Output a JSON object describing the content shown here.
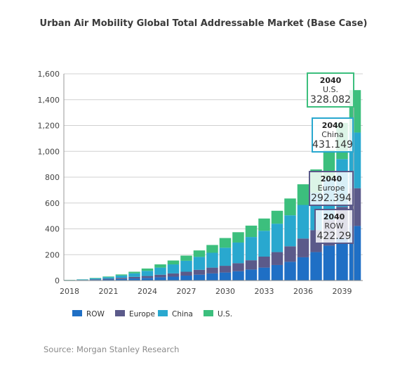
{
  "chart_data": {
    "type": "bar",
    "stacked": true,
    "title": "Urban Air Mobility Global Total Addressable Market (Base Case)",
    "xlabel": "",
    "ylabel": "",
    "ylim": [
      0,
      1600
    ],
    "yticks": [
      "0",
      "200",
      "400",
      "600",
      "800",
      "1,000",
      "1,200",
      "1,400",
      "1,600"
    ],
    "ytick_values": [
      0,
      200,
      400,
      600,
      800,
      1000,
      1200,
      1400,
      1600
    ],
    "xtick_labels": [
      "2018",
      "2021",
      "2024",
      "2027",
      "2030",
      "2033",
      "2036",
      "2039"
    ],
    "categories": [
      "2018",
      "2019",
      "2020",
      "2021",
      "2022",
      "2023",
      "2024",
      "2025",
      "2026",
      "2027",
      "2028",
      "2029",
      "2030",
      "2031",
      "2032",
      "2033",
      "2034",
      "2035",
      "2036",
      "2037",
      "2038",
      "2039",
      "2040"
    ],
    "grid": "horizontal",
    "legend_position": "bottom",
    "series": [
      {
        "name": "ROW",
        "color": "#1f6fc5",
        "values": [
          1,
          2,
          5,
          8,
          12,
          16,
          20,
          25,
          30,
          38,
          45,
          55,
          62,
          72,
          85,
          100,
          120,
          145,
          180,
          220,
          270,
          330,
          422.29
        ]
      },
      {
        "name": "Europe",
        "color": "#5b5a8a",
        "values": [
          1,
          2,
          4,
          6,
          9,
          12,
          15,
          20,
          25,
          30,
          38,
          45,
          52,
          62,
          72,
          85,
          100,
          120,
          145,
          170,
          200,
          240,
          292.394
        ]
      },
      {
        "name": "China",
        "color": "#29a8cf",
        "values": [
          2,
          4,
          8,
          12,
          18,
          28,
          40,
          55,
          70,
          85,
          100,
          115,
          140,
          160,
          180,
          200,
          220,
          240,
          260,
          290,
          320,
          370,
          431.149
        ]
      },
      {
        "name": "U.S.",
        "color": "#3cbf7d",
        "values": [
          1,
          1,
          3,
          5,
          8,
          12,
          18,
          25,
          30,
          40,
          50,
          60,
          75,
          80,
          88,
          95,
          100,
          130,
          160,
          180,
          220,
          280,
          328.082
        ]
      }
    ],
    "annotations": [
      {
        "year": "2040",
        "series": "U.S.",
        "value": "328.082",
        "border": "#3cbf7d"
      },
      {
        "year": "2040",
        "series": "China",
        "value": "431.149",
        "border": "#29a8cf"
      },
      {
        "year": "2040",
        "series": "Europe",
        "value": "292.394",
        "border": "#5b5a8a"
      },
      {
        "year": "2040",
        "series": "ROW",
        "value": "422.29",
        "border": "#5b5a8a"
      }
    ]
  },
  "source": "Source: Morgan Stanley Research"
}
